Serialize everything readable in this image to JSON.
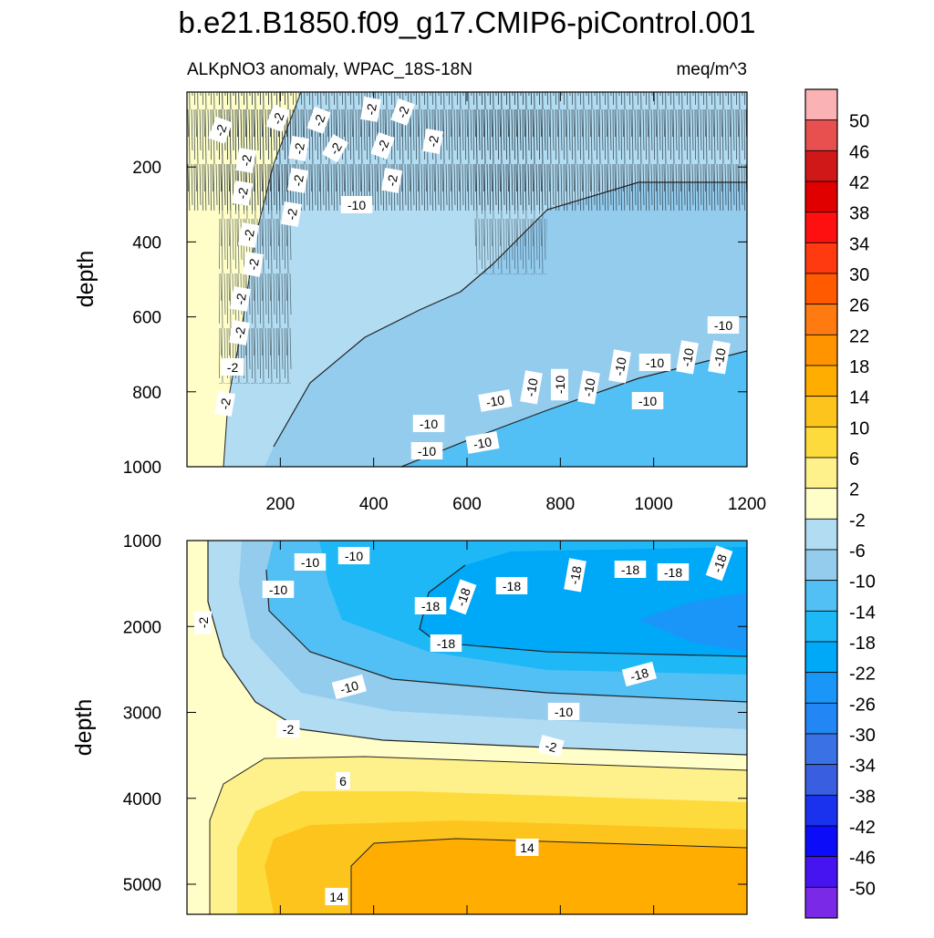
{
  "title": "b.e21.B1850.f09_g17.CMIP6-piControl.001",
  "subtitle_left": "ALKpNO3 anomaly, WPAC_18S-18N",
  "subtitle_right": "meq/m^3",
  "chart_data": [
    {
      "type": "contour",
      "panel": "top",
      "ylabel": "depth",
      "xlabel": "",
      "xlim": [
        0,
        1200
      ],
      "ylim": [
        1000,
        0
      ],
      "x_ticks": [
        200,
        400,
        600,
        800,
        1000,
        1200
      ],
      "y_ticks": [
        200,
        400,
        600,
        800,
        1000
      ],
      "contour_labels": [
        "-2",
        "-2",
        "-2",
        "-2",
        "-2",
        "-2",
        "-2",
        "-2",
        "-2",
        "-2",
        "-2",
        "-2",
        "-2",
        "-2",
        "-2",
        "-2",
        "-2",
        "-2",
        "-2",
        "-2",
        "-10",
        "-10",
        "-10",
        "-10",
        "-10",
        "-10",
        "-10",
        "-10",
        "-10",
        "-10",
        "-10",
        "-10",
        "-10",
        "-10"
      ]
    },
    {
      "type": "contour",
      "panel": "bottom",
      "ylabel": "depth",
      "xlabel": "",
      "xlim": [
        0,
        1200
      ],
      "ylim": [
        5350,
        1000
      ],
      "y_ticks": [
        1000,
        2000,
        3000,
        4000,
        5000
      ],
      "contour_labels": [
        "-10",
        "-10",
        "-10",
        "-10",
        "-10",
        "-18",
        "-18",
        "-18",
        "-18",
        "-18",
        "-18",
        "-18",
        "-18",
        "-18",
        "-2",
        "-2",
        "-2",
        "6",
        "14",
        "14"
      ]
    }
  ],
  "colorbar": {
    "labels": [
      "50",
      "46",
      "42",
      "38",
      "34",
      "30",
      "26",
      "22",
      "18",
      "14",
      "10",
      "6",
      "2",
      "-2",
      "-6",
      "-10",
      "-14",
      "-18",
      "-22",
      "-26",
      "-30",
      "-34",
      "-38",
      "-42",
      "-46",
      "-50"
    ],
    "colors": [
      "#fbb2b4",
      "#e85050",
      "#d01818",
      "#e00000",
      "#ff1010",
      "#ff3a10",
      "#ff5a00",
      "#ff7a10",
      "#ff9400",
      "#ffad00",
      "#fec41e",
      "#fedb3c",
      "#fef08a",
      "#fffec8",
      "#b2dcf2",
      "#94ccee",
      "#52c0f4",
      "#1eb8f6",
      "#00a8f8",
      "#1a96f8",
      "#2286f4",
      "#3a72e6",
      "#3a5ee0",
      "#1a32ee",
      "#0c0cf8",
      "#4614f0",
      "#7a2ae6"
    ]
  }
}
